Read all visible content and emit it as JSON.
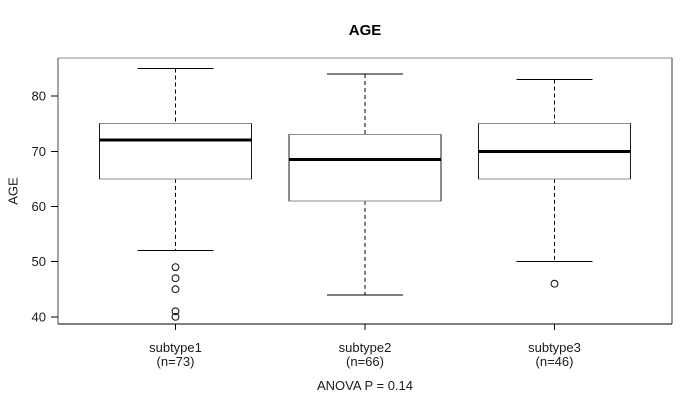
{
  "chart_data": {
    "type": "boxplot",
    "title": "AGE",
    "ylabel": "AGE",
    "annotation": "ANOVA P = 0.14",
    "yticks": [
      40,
      50,
      60,
      70,
      80
    ],
    "ylim": [
      38.7,
      86.9
    ],
    "grid": false,
    "legend": false,
    "groups": [
      {
        "label": "subtype1",
        "n_label": "(n=73)",
        "n": 73,
        "whisker_low": 52,
        "q1": 65,
        "median": 72,
        "q3": 75,
        "whisker_high": 85,
        "outliers": [
          49,
          47,
          45,
          41,
          40
        ]
      },
      {
        "label": "subtype2",
        "n_label": "(n=66)",
        "n": 66,
        "whisker_low": 44,
        "q1": 61,
        "median": 68.5,
        "q3": 73,
        "whisker_high": 84,
        "outliers": []
      },
      {
        "label": "subtype3",
        "n_label": "(n=46)",
        "n": 46,
        "whisker_low": 50,
        "q1": 65,
        "median": 70,
        "q3": 75,
        "whisker_high": 83,
        "outliers": [
          46
        ]
      }
    ]
  }
}
